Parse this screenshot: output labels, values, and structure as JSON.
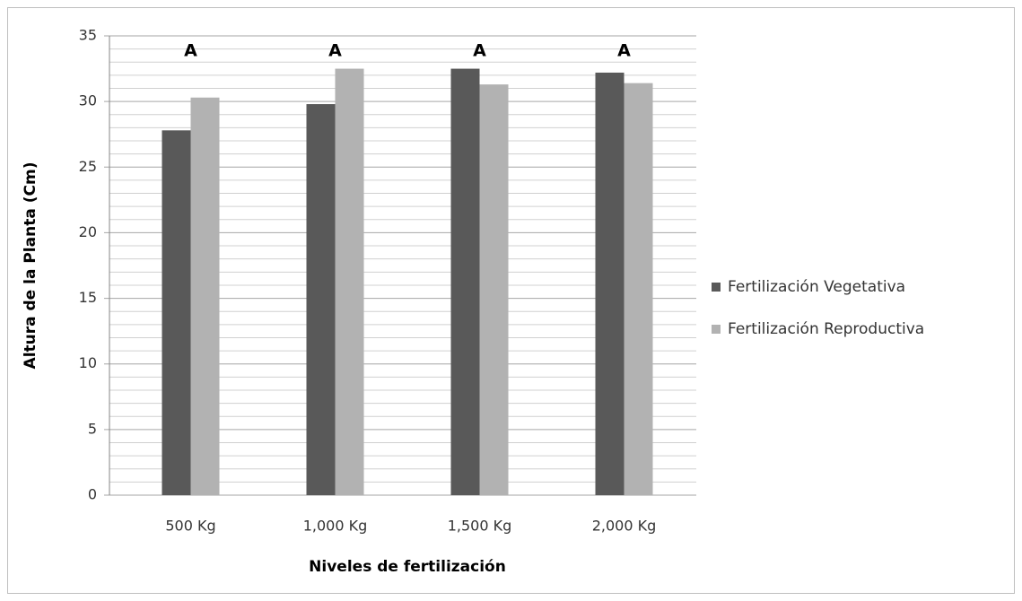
{
  "chart_data": {
    "type": "bar",
    "x_label": "Niveles de fertilización",
    "y_label": "Altura de la Planta (Cm)",
    "categories": [
      "500 Kg",
      "1,000 Kg",
      "1,500 Kg",
      "2,000 Kg"
    ],
    "annotations": [
      "A",
      "A",
      "A",
      "A"
    ],
    "series": [
      {
        "name": "Fertilización Vegetativa",
        "color": "#595959",
        "values": [
          27.8,
          29.8,
          32.5,
          32.2
        ]
      },
      {
        "name": "Fertilización Reproductiva",
        "color": "#b2b2b2",
        "values": [
          30.3,
          32.5,
          31.3,
          31.4
        ]
      }
    ],
    "ylim": [
      0,
      35
    ],
    "yticks": [
      0,
      5,
      10,
      15,
      20,
      25,
      30,
      35
    ],
    "grid": true,
    "minor_grid": true,
    "legend": "right"
  }
}
